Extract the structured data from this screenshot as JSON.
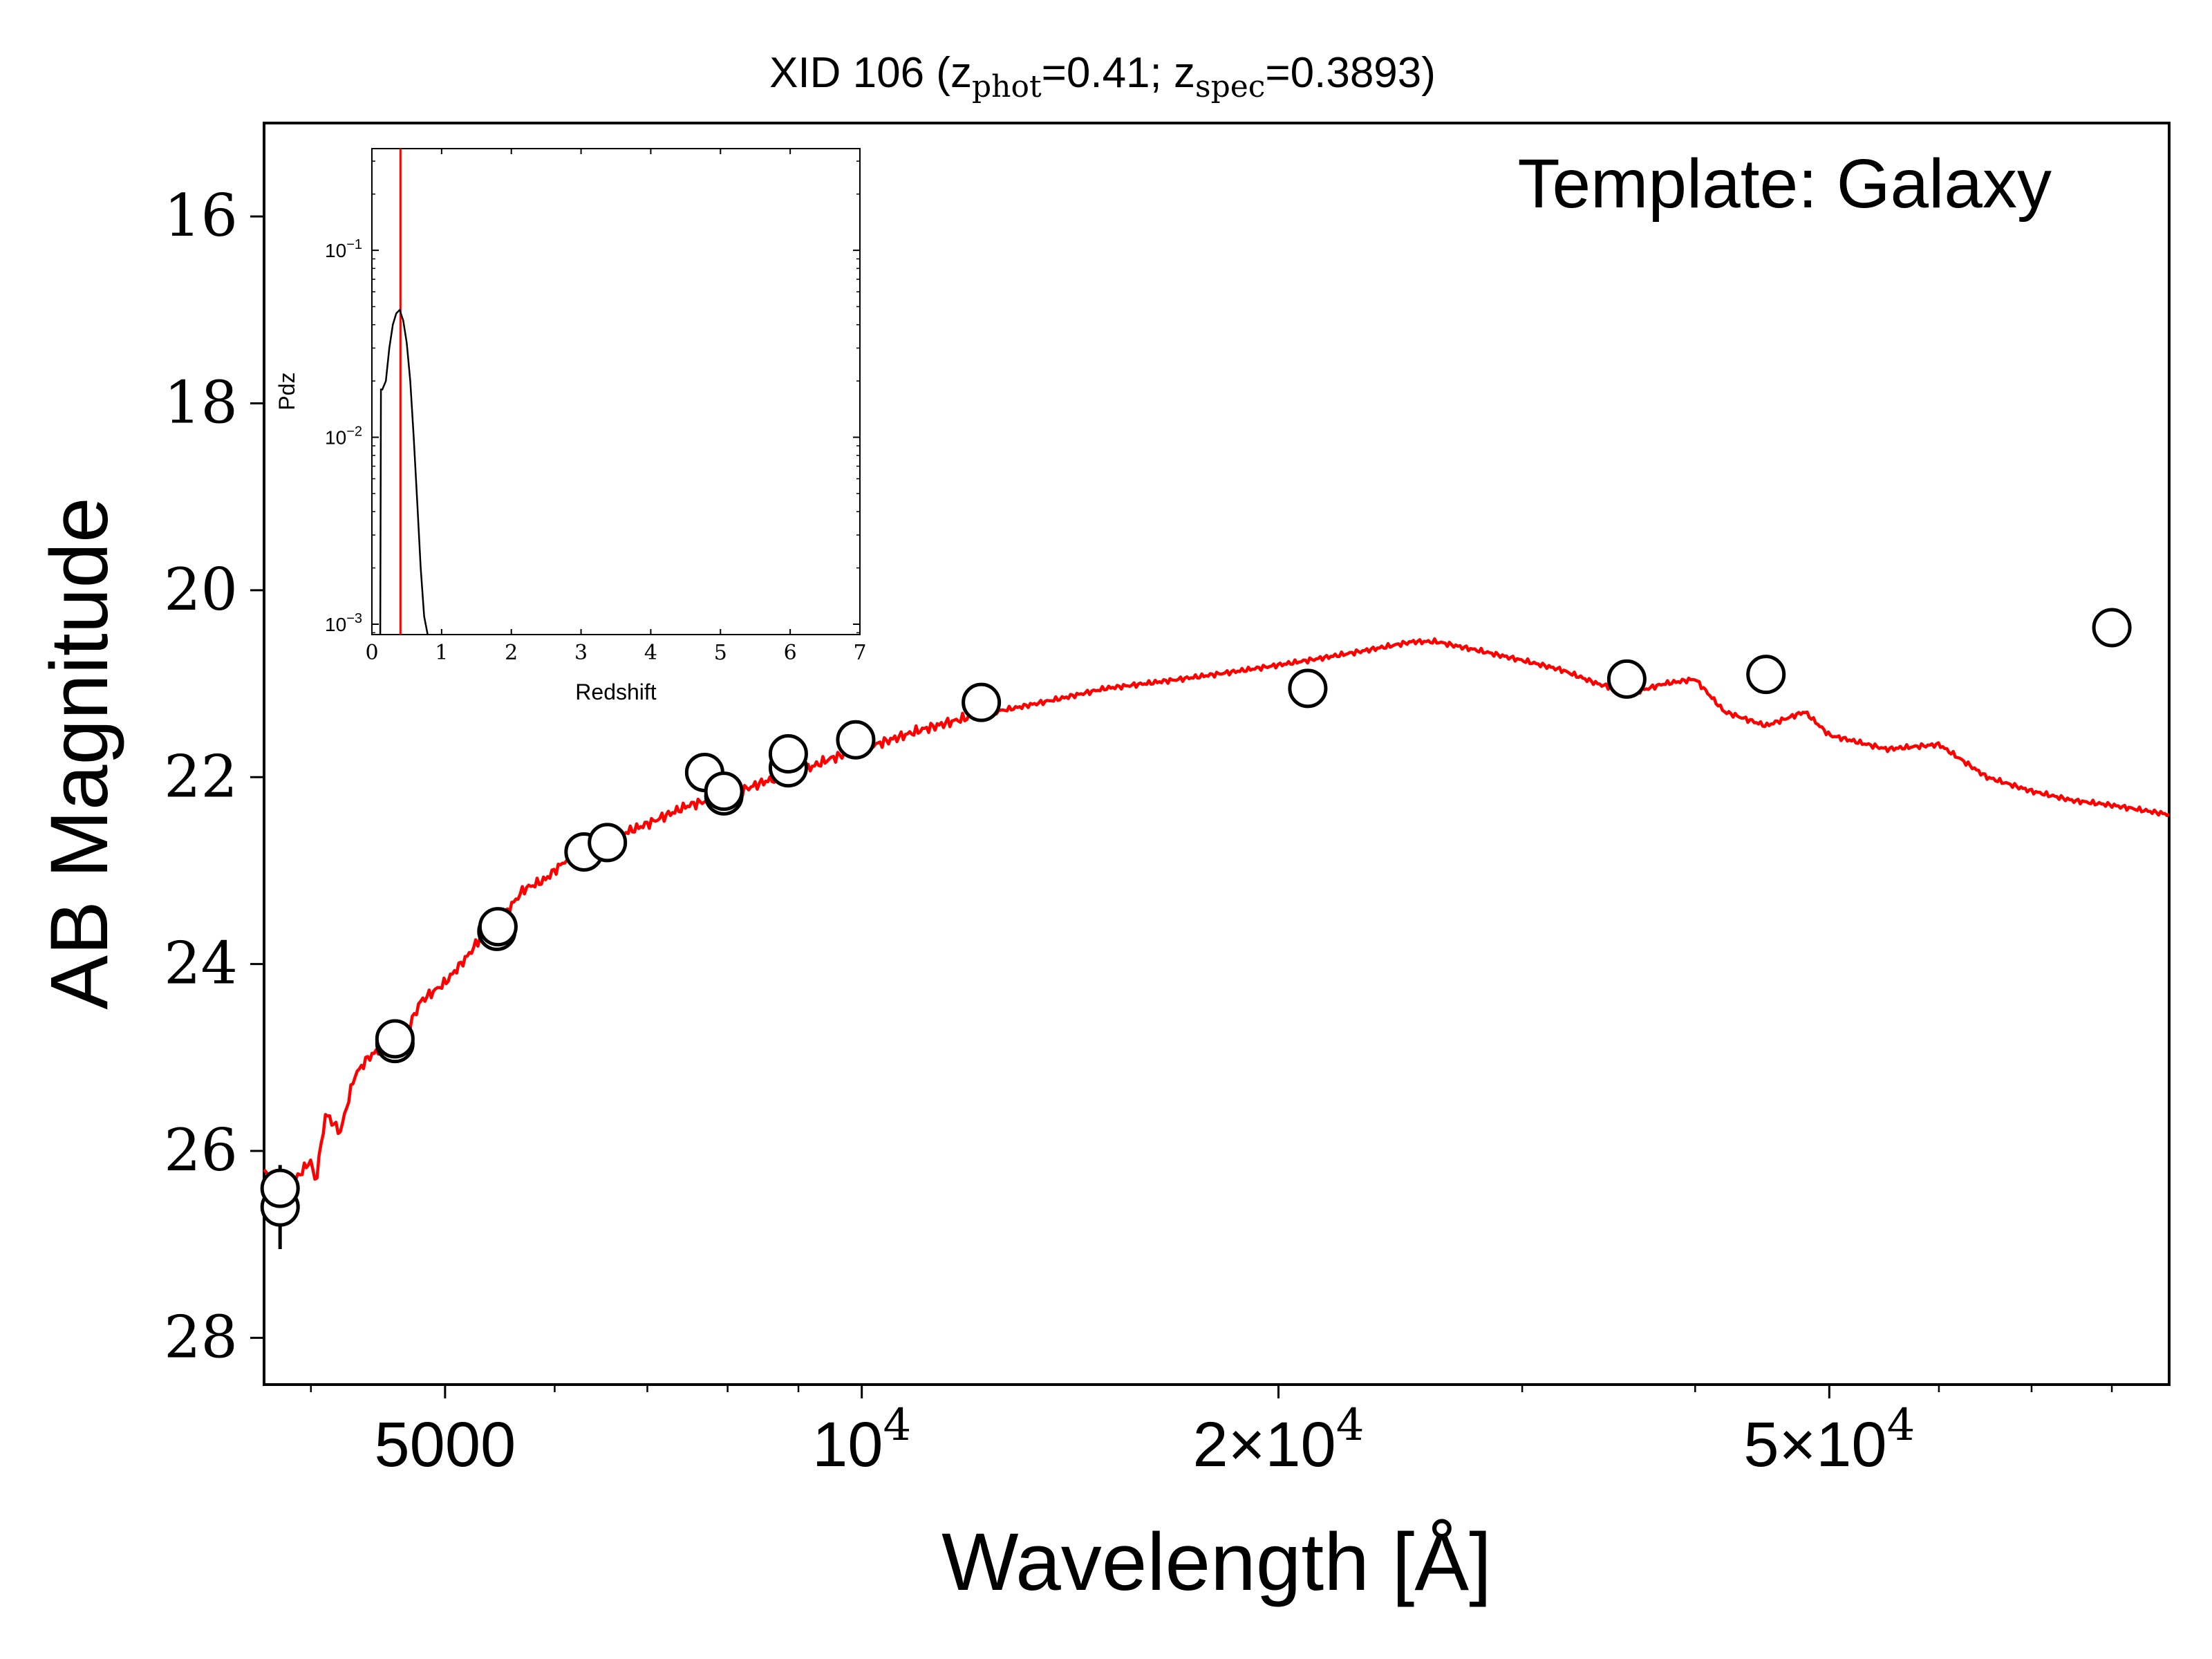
{
  "chart_data": [
    {
      "type": "line+scatter",
      "title_main": "XID 106 (z",
      "title_phot_sub": "phot",
      "title_phot_val": "=0.41; z",
      "title_spec_sub": "spec",
      "title_spec_val": "=0.3893)",
      "xlabel": "Wavelength [Å]",
      "ylabel": "AB Magnitude",
      "annotation": "Template: Galaxy",
      "x_scale": "log",
      "xlim": [
        3700,
        88000
      ],
      "ylim": [
        28.5,
        15.0
      ],
      "y_inverted": true,
      "y_ticks": [
        16,
        18,
        20,
        22,
        24,
        26,
        28
      ],
      "x_tick_labels": [
        {
          "x": 5000,
          "base": "5000",
          "exp": ""
        },
        {
          "x": 10000,
          "base": "10",
          "exp": "4"
        },
        {
          "x": 20000,
          "base": "2×10",
          "exp": "4"
        },
        {
          "x": 50000,
          "base": "5×10",
          "exp": "4"
        }
      ],
      "x_minor_ticks": [
        4000,
        6000,
        7000,
        8000,
        9000,
        30000,
        40000,
        60000,
        70000,
        80000
      ],
      "grid": false,
      "colors": {
        "template": "#ff0000",
        "points": "#000000"
      },
      "template": {
        "name": "Template: Galaxy",
        "x": [
          3700,
          3800,
          3900,
          4000,
          4030,
          4100,
          4200,
          4300,
          4400,
          4500,
          4700,
          4800,
          5000,
          5200,
          5400,
          5500,
          5700,
          5900,
          6100,
          6300,
          6600,
          7000,
          7500,
          8000,
          8500,
          9000,
          9500,
          10000,
          11000,
          12000,
          13000,
          14000,
          15000,
          16000,
          17000,
          18000,
          19000,
          20000,
          21000,
          22000,
          23000,
          24000,
          25000,
          26000,
          28000,
          30000,
          32000,
          34000,
          36000,
          38000,
          40000,
          42000,
          45000,
          48000,
          50000,
          55000,
          60000,
          65000,
          70000,
          75000,
          80000,
          88000
        ],
        "y": [
          26.2,
          26.5,
          26.3,
          26.1,
          26.35,
          25.6,
          25.8,
          25.2,
          25.0,
          24.9,
          24.7,
          24.4,
          24.2,
          23.9,
          23.55,
          23.5,
          23.2,
          23.1,
          22.9,
          22.8,
          22.65,
          22.5,
          22.3,
          22.2,
          22.05,
          21.95,
          21.8,
          21.7,
          21.5,
          21.35,
          21.25,
          21.15,
          21.05,
          21.0,
          20.95,
          20.9,
          20.85,
          20.8,
          20.75,
          20.7,
          20.65,
          20.6,
          20.55,
          20.55,
          20.65,
          20.75,
          20.85,
          21.0,
          21.1,
          21.0,
          20.95,
          21.3,
          21.45,
          21.3,
          21.55,
          21.7,
          21.65,
          22.0,
          22.15,
          22.25,
          22.3,
          22.4
        ]
      },
      "photometry": {
        "points": [
          {
            "x": 3800,
            "y": 26.6,
            "err": 0.45
          },
          {
            "x": 3800,
            "y": 26.4,
            "err": 0
          },
          {
            "x": 4600,
            "y": 24.85,
            "err": 0
          },
          {
            "x": 4600,
            "y": 24.8,
            "err": 0
          },
          {
            "x": 5450,
            "y": 23.65,
            "err": 0
          },
          {
            "x": 5460,
            "y": 23.6,
            "err": 0
          },
          {
            "x": 6300,
            "y": 22.8,
            "err": 0
          },
          {
            "x": 6550,
            "y": 22.7,
            "err": 0
          },
          {
            "x": 7700,
            "y": 21.95,
            "err": 0
          },
          {
            "x": 7950,
            "y": 22.2,
            "err": 0
          },
          {
            "x": 7950,
            "y": 22.15,
            "err": 0
          },
          {
            "x": 8850,
            "y": 21.9,
            "err": 0
          },
          {
            "x": 8850,
            "y": 21.75,
            "err": 0
          },
          {
            "x": 9900,
            "y": 21.6,
            "err": 0
          },
          {
            "x": 12200,
            "y": 21.2,
            "err": 0
          },
          {
            "x": 21000,
            "y": 21.05,
            "err": 0
          },
          {
            "x": 35700,
            "y": 20.95,
            "err": 0
          },
          {
            "x": 45000,
            "y": 20.9,
            "err": 0
          },
          {
            "x": 80000,
            "y": 20.4,
            "err": 0
          }
        ]
      }
    },
    {
      "type": "line",
      "role": "inset",
      "xlabel": "Redshift",
      "ylabel": "Pdz",
      "y_scale": "log",
      "xlim": [
        0,
        7
      ],
      "ylim": [
        0.00088,
        0.35
      ],
      "x_ticks": [
        0,
        1,
        2,
        3,
        4,
        5,
        6,
        7
      ],
      "y_tick_labels": [
        {
          "y": 0.1,
          "base": "10",
          "exp": "−1"
        },
        {
          "y": 0.01,
          "base": "10",
          "exp": "−2"
        },
        {
          "y": 0.001,
          "base": "10",
          "exp": "−3"
        }
      ],
      "zphot_line": 0.41,
      "colors": {
        "pdz": "#000000",
        "zphot": "#ff0000"
      },
      "pdz": {
        "x": [
          0.12,
          0.13,
          0.15,
          0.2,
          0.25,
          0.3,
          0.35,
          0.4,
          0.45,
          0.5,
          0.55,
          0.6,
          0.65,
          0.7,
          0.75,
          0.8
        ],
        "y": [
          0.00088,
          0.018,
          0.018,
          0.02,
          0.03,
          0.04,
          0.046,
          0.048,
          0.042,
          0.032,
          0.02,
          0.01,
          0.0045,
          0.002,
          0.0011,
          0.00088
        ]
      }
    }
  ]
}
